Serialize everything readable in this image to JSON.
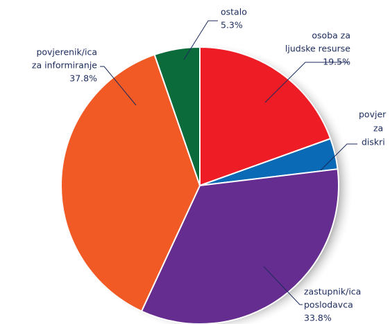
{
  "chart_data": {
    "type": "pie",
    "categories": [
      [
        "osoba za",
        "ljudske resurse"
      ],
      [
        "povjer",
        "za",
        "diskri"
      ],
      [
        "zastupnik/ica",
        "poslodavca"
      ],
      [
        "povjerenik/ica",
        "za informiranje"
      ],
      [
        "ostalo"
      ]
    ],
    "values": [
      19.5,
      3.6,
      33.8,
      37.8,
      5.3
    ],
    "value_labels": [
      "19.5%",
      null,
      "33.8%",
      "37.8%",
      "5.3%"
    ],
    "colors": [
      "#ee1c25",
      "#0a6ab6",
      "#662d91",
      "#f15a24",
      "#0b6b3a"
    ]
  }
}
